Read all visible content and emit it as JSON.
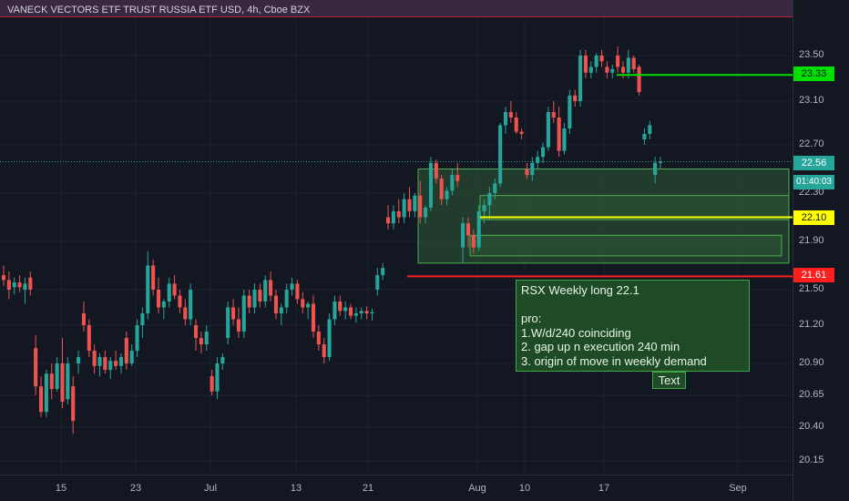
{
  "header": {
    "title": "VANECK VECTORS ETF TRUST RUSSIA ETF USD, 4h, Cboe BZX"
  },
  "colors": {
    "background": "#131722",
    "up": "#26a69a",
    "down": "#ef5350",
    "zone_fill": "#2e5a35",
    "zone_border": "#4caf50",
    "red_line": "#ff1f1f",
    "green_line": "#00e000",
    "yellow_line": "#ffff00",
    "last_price": "#26a69a"
  },
  "price_axis": {
    "ticks": [
      "23.50",
      "23.10",
      "22.70",
      "22.30",
      "21.90",
      "21.50",
      "21.20",
      "20.90",
      "20.65",
      "20.40",
      "20.15"
    ]
  },
  "time_axis": {
    "ticks": [
      "15",
      "23",
      "Jul",
      "13",
      "21",
      "Aug",
      "10",
      "17",
      "Sep"
    ]
  },
  "badges": {
    "green_level": "23.33",
    "last_price": "22.56",
    "countdown": "01:40:03",
    "yellow_level": "22.10",
    "red_level": "21.61"
  },
  "annotation": {
    "text": "RSX Weekly long 22.1\n\npro:\n1.W/d/240 coinciding\n2. gap up n execution 240 min\n3. origin of move in weekly demand",
    "label": "Text"
  },
  "chart_data": {
    "type": "candlestick",
    "title": "VANECK VECTORS ETF TRUST RUSSIA ETF USD, 4h, Cboe BZX",
    "timeframe": "4h",
    "y_ticks": [
      23.5,
      23.1,
      22.7,
      22.3,
      21.9,
      21.5,
      21.2,
      20.9,
      20.65,
      20.4,
      20.15
    ],
    "x_ticks": [
      "15",
      "23",
      "Jul",
      "13",
      "21",
      "Aug",
      "10",
      "17",
      "Sep"
    ],
    "last_price": 22.56,
    "levels": [
      {
        "name": "green",
        "price": 23.33,
        "color": "#00e000"
      },
      {
        "name": "yellow",
        "price": 22.1,
        "color": "#ffff00"
      },
      {
        "name": "red",
        "price": 21.61,
        "color": "#ff1f1f"
      }
    ],
    "zones": [
      {
        "top": 22.5,
        "bottom": 21.72
      },
      {
        "top": 22.28,
        "bottom": 22.08
      },
      {
        "top": 21.95,
        "bottom": 21.78
      }
    ],
    "candles": [
      [
        21.62,
        21.7,
        21.53,
        21.58
      ],
      [
        21.58,
        21.65,
        21.42,
        21.5
      ],
      [
        21.52,
        21.6,
        21.46,
        21.56
      ],
      [
        21.56,
        21.62,
        21.48,
        21.52
      ],
      [
        21.5,
        21.6,
        21.38,
        21.55
      ],
      [
        21.6,
        21.65,
        21.45,
        21.5
      ],
      [
        21.02,
        21.12,
        20.65,
        20.72
      ],
      [
        20.72,
        20.8,
        20.48,
        20.52
      ],
      [
        20.52,
        20.85,
        20.48,
        20.82
      ],
      [
        20.82,
        20.9,
        20.62,
        20.7
      ],
      [
        20.7,
        20.95,
        20.68,
        20.9
      ],
      [
        20.9,
        21.1,
        20.55,
        20.6
      ],
      [
        20.62,
        20.95,
        20.58,
        20.9
      ],
      [
        20.72,
        20.8,
        20.35,
        20.45
      ],
      [
        20.9,
        21.0,
        20.82,
        20.95
      ],
      [
        21.3,
        21.4,
        21.15,
        21.2
      ],
      [
        21.2,
        21.25,
        20.95,
        21.0
      ],
      [
        21.0,
        21.05,
        20.82,
        20.88
      ],
      [
        20.88,
        20.98,
        20.8,
        20.95
      ],
      [
        20.95,
        21.0,
        20.82,
        20.85
      ],
      [
        20.85,
        20.95,
        20.78,
        20.92
      ],
      [
        20.92,
        21.0,
        20.85,
        20.88
      ],
      [
        20.88,
        20.98,
        20.82,
        20.95
      ],
      [
        21.1,
        21.15,
        20.85,
        20.9
      ],
      [
        20.9,
        21.05,
        20.88,
        21.0
      ],
      [
        21.0,
        21.25,
        20.95,
        21.2
      ],
      [
        21.2,
        21.35,
        21.1,
        21.3
      ],
      [
        21.3,
        21.82,
        21.25,
        21.7
      ],
      [
        21.7,
        21.75,
        21.45,
        21.5
      ],
      [
        21.5,
        21.6,
        21.3,
        21.35
      ],
      [
        21.35,
        21.42,
        21.25,
        21.4
      ],
      [
        21.4,
        21.6,
        21.35,
        21.55
      ],
      [
        21.55,
        21.62,
        21.42,
        21.45
      ],
      [
        21.45,
        21.5,
        21.3,
        21.35
      ],
      [
        21.35,
        21.42,
        21.2,
        21.25
      ],
      [
        21.25,
        21.55,
        21.2,
        21.5
      ],
      [
        21.2,
        21.25,
        21.0,
        21.1
      ],
      [
        21.1,
        21.15,
        20.98,
        21.05
      ],
      [
        21.05,
        21.2,
        21.0,
        21.15
      ],
      [
        20.8,
        20.85,
        20.65,
        20.68
      ],
      [
        20.68,
        20.95,
        20.62,
        20.9
      ],
      [
        20.9,
        20.98,
        20.85,
        20.95
      ],
      [
        21.1,
        21.4,
        21.05,
        21.35
      ],
      [
        21.35,
        21.42,
        21.2,
        21.25
      ],
      [
        21.25,
        21.35,
        21.1,
        21.15
      ],
      [
        21.15,
        21.5,
        21.1,
        21.45
      ],
      [
        21.45,
        21.5,
        21.3,
        21.35
      ],
      [
        21.35,
        21.55,
        21.3,
        21.5
      ],
      [
        21.5,
        21.55,
        21.35,
        21.4
      ],
      [
        21.4,
        21.62,
        21.35,
        21.58
      ],
      [
        21.58,
        21.65,
        21.4,
        21.45
      ],
      [
        21.45,
        21.5,
        21.25,
        21.3
      ],
      [
        21.3,
        21.38,
        21.2,
        21.35
      ],
      [
        21.35,
        21.55,
        21.3,
        21.5
      ],
      [
        21.5,
        21.6,
        21.45,
        21.55
      ],
      [
        21.55,
        21.58,
        21.38,
        21.42
      ],
      [
        21.42,
        21.48,
        21.3,
        21.35
      ],
      [
        21.35,
        21.4,
        21.25,
        21.38
      ],
      [
        21.38,
        21.45,
        21.1,
        21.15
      ],
      [
        21.15,
        21.2,
        21.0,
        21.05
      ],
      [
        21.05,
        21.1,
        20.9,
        20.95
      ],
      [
        20.95,
        21.3,
        20.92,
        21.25
      ],
      [
        21.25,
        21.45,
        21.2,
        21.4
      ],
      [
        21.4,
        21.45,
        21.28,
        21.32
      ],
      [
        21.32,
        21.4,
        21.25,
        21.35
      ],
      [
        21.35,
        21.38,
        21.25,
        21.28
      ],
      [
        21.28,
        21.35,
        21.22,
        21.3
      ],
      [
        21.3,
        21.35,
        21.25,
        21.32
      ],
      [
        21.32,
        21.36,
        21.25,
        21.3
      ],
      [
        21.3,
        21.34,
        21.24,
        21.31
      ],
      [
        21.5,
        21.68,
        21.45,
        21.62
      ],
      [
        21.62,
        21.72,
        21.58,
        21.68
      ],
      [
        22.1,
        22.2,
        22.0,
        22.05
      ],
      [
        22.05,
        22.2,
        22.0,
        22.15
      ],
      [
        22.15,
        22.25,
        22.05,
        22.1
      ],
      [
        22.1,
        22.3,
        22.05,
        22.25
      ],
      [
        22.25,
        22.35,
        22.1,
        22.15
      ],
      [
        22.15,
        22.3,
        22.1,
        22.28
      ],
      [
        22.28,
        22.4,
        22.05,
        22.1
      ],
      [
        22.1,
        22.2,
        22.05,
        22.18
      ],
      [
        22.18,
        22.6,
        22.15,
        22.55
      ],
      [
        22.55,
        22.58,
        22.38,
        22.42
      ],
      [
        22.42,
        22.45,
        22.2,
        22.25
      ],
      [
        22.25,
        22.35,
        22.2,
        22.32
      ],
      [
        22.32,
        22.5,
        22.28,
        22.45
      ],
      [
        22.45,
        22.55,
        22.35,
        22.4
      ],
      [
        21.85,
        22.1,
        21.72,
        22.05
      ],
      [
        22.05,
        22.1,
        21.85,
        21.95
      ],
      [
        21.95,
        22.0,
        21.8,
        21.85
      ],
      [
        21.85,
        22.2,
        21.82,
        22.15
      ],
      [
        22.15,
        22.25,
        22.05,
        22.2
      ],
      [
        22.2,
        22.35,
        22.08,
        22.3
      ],
      [
        22.3,
        22.42,
        22.25,
        22.38
      ],
      [
        22.38,
        22.9,
        22.35,
        22.88
      ],
      [
        22.88,
        23.05,
        22.8,
        23.0
      ],
      [
        23.0,
        23.1,
        22.9,
        22.95
      ],
      [
        22.95,
        23.0,
        22.8,
        22.82
      ],
      [
        22.82,
        22.85,
        22.75,
        22.8
      ],
      [
        22.5,
        22.55,
        22.42,
        22.45
      ],
      [
        22.45,
        22.6,
        22.4,
        22.55
      ],
      [
        22.55,
        22.65,
        22.5,
        22.6
      ],
      [
        22.6,
        22.72,
        22.55,
        22.68
      ],
      [
        22.68,
        23.05,
        22.65,
        23.0
      ],
      [
        23.0,
        23.1,
        22.9,
        22.95
      ],
      [
        22.95,
        23.05,
        22.6,
        22.65
      ],
      [
        22.65,
        22.9,
        22.62,
        22.85
      ],
      [
        22.85,
        23.2,
        22.8,
        23.15
      ],
      [
        23.15,
        23.2,
        23.05,
        23.1
      ],
      [
        23.1,
        23.55,
        23.05,
        23.5
      ],
      [
        23.5,
        23.55,
        23.3,
        23.35
      ],
      [
        23.35,
        23.45,
        23.3,
        23.4
      ],
      [
        23.4,
        23.52,
        23.35,
        23.5
      ],
      [
        23.5,
        23.55,
        23.4,
        23.45
      ],
      [
        23.4,
        23.45,
        23.3,
        23.35
      ],
      [
        23.35,
        23.42,
        23.3,
        23.38
      ],
      [
        23.5,
        23.58,
        23.35,
        23.4
      ],
      [
        23.4,
        23.45,
        23.3,
        23.35
      ],
      [
        23.35,
        23.55,
        23.3,
        23.48
      ],
      [
        23.48,
        23.5,
        23.35,
        23.38
      ],
      [
        23.4,
        23.42,
        23.15,
        23.18
      ],
      [
        22.75,
        22.85,
        22.7,
        22.8
      ],
      [
        22.8,
        22.92,
        22.75,
        22.88
      ],
      [
        22.45,
        22.6,
        22.38,
        22.55
      ],
      [
        22.55,
        22.6,
        22.5,
        22.56
      ]
    ]
  }
}
